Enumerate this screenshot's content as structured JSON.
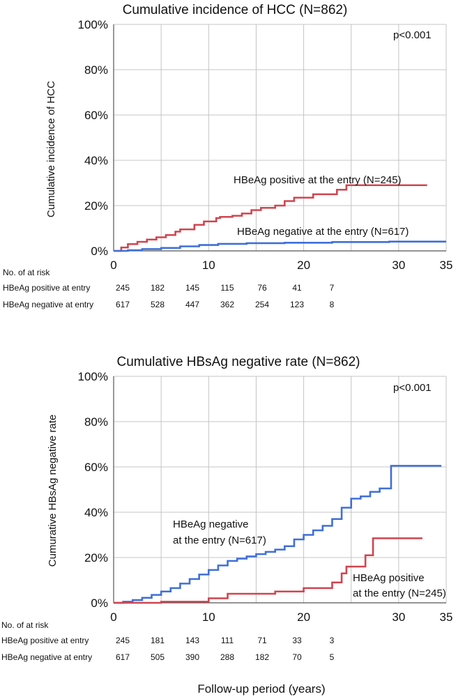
{
  "colors": {
    "positive": "#d0454f",
    "negative": "#3f6fd8",
    "grid": "#c4c4c4",
    "axis": "#555555"
  },
  "x_axis_label": "Follow-up period (years)",
  "chart_data": [
    {
      "type": "line",
      "step": true,
      "title": "Cumulative incidence of HCC (N=862)",
      "ylabel": "Cumulative incidence of HCC",
      "xlabel": "",
      "xlim": [
        0,
        35
      ],
      "ylim": [
        0,
        100
      ],
      "x_ticks": [
        "0",
        "10",
        "20",
        "30",
        "35"
      ],
      "y_ticks": [
        "0%",
        "20%",
        "40%",
        "60%",
        "80%",
        "100%"
      ],
      "p_value": "p<0.001",
      "series": [
        {
          "name": "HBeAg positive at the entry (N=245)",
          "color": "#d0454f",
          "x": [
            0,
            0.8,
            1.5,
            2.5,
            3.5,
            4.5,
            5.5,
            6.5,
            7,
            8.5,
            9.5,
            10.8,
            11.2,
            12.5,
            13.5,
            14.5,
            15.5,
            17,
            18,
            19,
            21,
            23.5,
            24.5,
            33
          ],
          "y": [
            0,
            1.5,
            3,
            4,
            5,
            6,
            7,
            8.5,
            9.5,
            11.5,
            13,
            14.5,
            15,
            15.5,
            16.5,
            18,
            19,
            20,
            22,
            23.5,
            25,
            27,
            29,
            29
          ]
        },
        {
          "name": "HBeAg negative at the entry (N=617)",
          "color": "#3f6fd8",
          "x": [
            0,
            1.5,
            3,
            5,
            7,
            9,
            11,
            14,
            18,
            23,
            29,
            35
          ],
          "y": [
            0,
            0.3,
            0.8,
            1.3,
            2,
            2.6,
            3.1,
            3.4,
            3.6,
            3.9,
            4.1,
            4.1
          ]
        }
      ],
      "risk_table": {
        "header": "No. of at risk",
        "times": [
          0,
          5,
          10,
          15,
          20,
          25,
          30
        ],
        "rows": [
          {
            "label": "HBeAg positive at entry",
            "values": [
              "245",
              "182",
              "145",
              "115",
              "76",
              "41",
              "7"
            ]
          },
          {
            "label": "HBeAg negative at entry",
            "values": [
              "617",
              "528",
              "447",
              "362",
              "254",
              "123",
              "8"
            ]
          }
        ]
      }
    },
    {
      "type": "line",
      "step": true,
      "title": "Cumulative HBsAg negative rate (N=862)",
      "ylabel": "Cumurative HBsAg negative rate",
      "xlabel": "",
      "xlim": [
        0,
        35
      ],
      "ylim": [
        0,
        100
      ],
      "x_ticks": [
        "0",
        "10",
        "20",
        "30",
        "35"
      ],
      "y_ticks": [
        "0%",
        "20%",
        "40%",
        "60%",
        "80%",
        "100%"
      ],
      "p_value": "p<0.001",
      "series": [
        {
          "name": "HBeAg negative at the entry (N=617)",
          "color": "#3f6fd8",
          "x": [
            0,
            1,
            2,
            3,
            4,
            5,
            6,
            7,
            8,
            9,
            10,
            11,
            12,
            13,
            14,
            15,
            16,
            17,
            18,
            19,
            20,
            21,
            22,
            23,
            24,
            25,
            26,
            27,
            28,
            29,
            29.2,
            32,
            34.5
          ],
          "y": [
            0,
            0.5,
            1.2,
            2.2,
            3.5,
            5,
            6.5,
            8.5,
            10.5,
            12.5,
            14.5,
            16.5,
            18.5,
            19.5,
            20.5,
            21.5,
            22.5,
            23.5,
            25,
            28,
            30,
            32,
            34,
            37,
            42,
            46,
            47,
            49,
            50.5,
            50.5,
            60.5,
            60.5,
            60.5
          ]
        },
        {
          "name": "HBeAg positive at the entry (N=245)",
          "color": "#d0454f",
          "x": [
            0,
            5,
            10,
            12,
            17,
            20,
            23,
            24,
            24.5,
            26.5,
            27.3,
            32.5
          ],
          "y": [
            0,
            0.5,
            2,
            4,
            5,
            6.5,
            9,
            13,
            16,
            21,
            28.5,
            28.5
          ]
        }
      ],
      "risk_table": {
        "header": "No. of at risk",
        "times": [
          0,
          5,
          10,
          15,
          20,
          25,
          30
        ],
        "rows": [
          {
            "label": "HBeAg positive at entry",
            "values": [
              "245",
              "181",
              "143",
              "111",
              "71",
              "33",
              "3"
            ]
          },
          {
            "label": "HBeAg negative at entry",
            "values": [
              "617",
              "505",
              "390",
              "288",
              "182",
              "70",
              "5"
            ]
          }
        ]
      }
    }
  ],
  "annotations": {
    "top": {
      "positive": [
        "HBeAg positive at the entry (N=245)"
      ],
      "negative": [
        "HBeAg negative at the entry (N=617)"
      ]
    },
    "bottom": {
      "negative": [
        "HBeAg negative",
        "at the entry (N=617)"
      ],
      "positive": [
        "HBeAg positive",
        "at the entry (N=245)"
      ]
    }
  }
}
